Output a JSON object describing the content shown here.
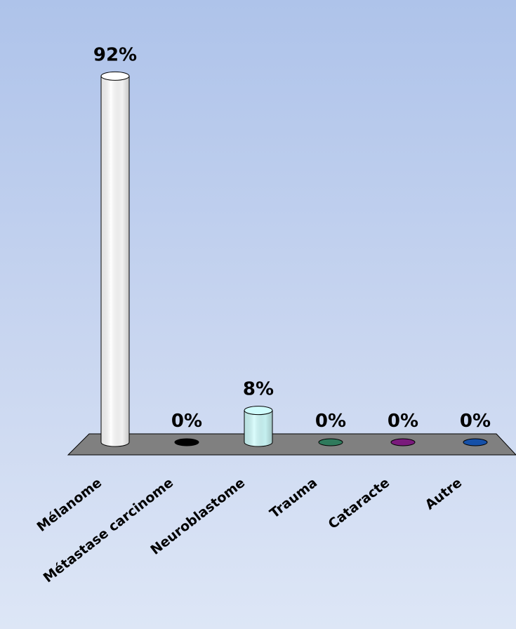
{
  "chart_data": {
    "type": "bar",
    "categories": [
      "Mélanome",
      "Métastase carcinome",
      "Neuroblastome",
      "Trauma",
      "Cataracte",
      "Autre"
    ],
    "values": [
      92,
      0,
      8,
      0,
      0,
      0
    ],
    "value_labels": [
      "92%",
      "0%",
      "8%",
      "0%",
      "0%",
      "0%"
    ],
    "colors": [
      "#ffffff",
      "#000000",
      "#cffcfc",
      "#2f7a5c",
      "#7a1a7c",
      "#1550a8"
    ],
    "ylim": [
      0,
      100
    ],
    "grid": false,
    "legend": "none",
    "style": "3d-cylinder"
  }
}
